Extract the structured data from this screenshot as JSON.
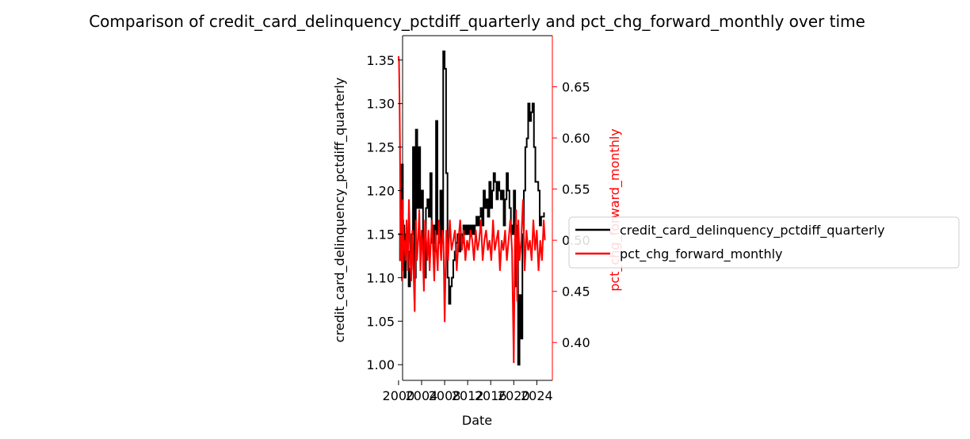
{
  "chart_data": {
    "type": "line",
    "title": "Comparison of credit_card_delinquency_pctdiff_quarterly and pct_chg_forward_monthly over time",
    "xlabel": "Date",
    "ylabel_left": "credit_card_delinquency_pctdiff_quarterly",
    "ylabel_right": "pct_chg_forward_monthly",
    "xlim": [
      2000.7,
      2026.7
    ],
    "ylim_left": [
      0.982,
      1.378
    ],
    "ylim_right": [
      0.363,
      0.7
    ],
    "x_ticks": [
      {
        "value": 2000,
        "label": "2000"
      },
      {
        "value": 2004,
        "label": "2004"
      },
      {
        "value": 2008,
        "label": "2008"
      },
      {
        "value": 2012,
        "label": "2012"
      },
      {
        "value": 2016,
        "label": "2016"
      },
      {
        "value": 2020,
        "label": "2020"
      },
      {
        "value": 2024,
        "label": "2024"
      }
    ],
    "y_ticks_left": [
      {
        "value": 1.0,
        "label": "1.00"
      },
      {
        "value": 1.05,
        "label": "1.05"
      },
      {
        "value": 1.1,
        "label": "1.10"
      },
      {
        "value": 1.15,
        "label": "1.15"
      },
      {
        "value": 1.2,
        "label": "1.20"
      },
      {
        "value": 1.25,
        "label": "1.25"
      },
      {
        "value": 1.3,
        "label": "1.30"
      },
      {
        "value": 1.35,
        "label": "1.35"
      }
    ],
    "y_ticks_right": [
      {
        "value": 0.4,
        "label": "0.40"
      },
      {
        "value": 0.45,
        "label": "0.45"
      },
      {
        "value": 0.5,
        "label": "0.50"
      },
      {
        "value": 0.55,
        "label": "0.55"
      },
      {
        "value": 0.6,
        "label": "0.60"
      },
      {
        "value": 0.65,
        "label": "0.65"
      }
    ],
    "legend_placement": "center-right outside",
    "series": [
      {
        "name": "credit_card_delinquency_pctdiff_quarterly",
        "axis": "left",
        "color": "#000000",
        "step": true,
        "x": [
          2000.0,
          2000.25,
          2000.5,
          2000.75,
          2001.0,
          2001.25,
          2001.5,
          2001.75,
          2002.0,
          2002.25,
          2002.5,
          2002.75,
          2003.0,
          2003.25,
          2003.5,
          2003.75,
          2004.0,
          2004.25,
          2004.5,
          2004.75,
          2005.0,
          2005.25,
          2005.5,
          2005.75,
          2006.0,
          2006.25,
          2006.5,
          2006.75,
          2007.0,
          2007.25,
          2007.5,
          2007.75,
          2008.0,
          2008.25,
          2008.5,
          2008.75,
          2009.0,
          2009.25,
          2009.5,
          2009.75,
          2010.0,
          2010.25,
          2010.5,
          2010.75,
          2011.0,
          2011.25,
          2011.5,
          2011.75,
          2012.0,
          2012.25,
          2012.5,
          2012.75,
          2013.0,
          2013.25,
          2013.5,
          2013.75,
          2014.0,
          2014.25,
          2014.5,
          2014.75,
          2015.0,
          2015.25,
          2015.5,
          2015.75,
          2016.0,
          2016.25,
          2016.5,
          2016.75,
          2017.0,
          2017.25,
          2017.5,
          2017.75,
          2018.0,
          2018.25,
          2018.5,
          2018.75,
          2019.0,
          2019.25,
          2019.5,
          2019.75,
          2020.0,
          2020.25,
          2020.5,
          2020.75,
          2021.0,
          2021.25,
          2021.5,
          2021.75,
          2022.0,
          2022.25,
          2022.5,
          2022.75,
          2023.0,
          2023.25,
          2023.5,
          2023.75,
          2024.0,
          2024.25,
          2024.5,
          2024.75,
          2025.0,
          2025.25
        ],
        "values": [
          1.15,
          1.12,
          1.23,
          1.16,
          1.1,
          1.15,
          1.13,
          1.09,
          1.11,
          1.15,
          1.25,
          1.1,
          1.27,
          1.18,
          1.25,
          1.18,
          1.2,
          1.13,
          1.1,
          1.18,
          1.19,
          1.17,
          1.22,
          1.14,
          1.16,
          1.13,
          1.28,
          1.15,
          1.14,
          1.2,
          1.14,
          1.36,
          1.34,
          1.22,
          1.1,
          1.07,
          1.09,
          1.1,
          1.12,
          1.13,
          1.14,
          1.15,
          1.13,
          1.15,
          1.14,
          1.16,
          1.15,
          1.16,
          1.15,
          1.16,
          1.15,
          1.16,
          1.15,
          1.16,
          1.17,
          1.16,
          1.17,
          1.18,
          1.16,
          1.2,
          1.18,
          1.19,
          1.17,
          1.21,
          1.18,
          1.2,
          1.22,
          1.21,
          1.19,
          1.21,
          1.2,
          1.19,
          1.2,
          1.16,
          1.19,
          1.22,
          1.2,
          1.18,
          1.16,
          1.15,
          1.2,
          1.09,
          1.16,
          1.0,
          1.08,
          1.03,
          1.15,
          1.2,
          1.25,
          1.26,
          1.3,
          1.28,
          1.29,
          1.3,
          1.25,
          1.21,
          1.21,
          1.2,
          1.16,
          1.17,
          1.17,
          1.175
        ]
      },
      {
        "name": "pct_chg_forward_monthly",
        "axis": "right",
        "color": "#ff0000",
        "step": false,
        "x": [
          2000.0,
          2000.08,
          2000.17,
          2000.25,
          2000.33,
          2000.42,
          2000.5,
          2000.58,
          2000.67,
          2000.75,
          2000.83,
          2000.92,
          2001.0,
          2001.2,
          2001.4,
          2001.6,
          2001.8,
          2002.0,
          2002.2,
          2002.4,
          2002.6,
          2002.8,
          2003.0,
          2003.2,
          2003.4,
          2003.6,
          2003.8,
          2004.0,
          2004.2,
          2004.4,
          2004.6,
          2004.8,
          2005.0,
          2005.2,
          2005.4,
          2005.6,
          2005.8,
          2006.0,
          2006.2,
          2006.4,
          2006.6,
          2006.8,
          2007.0,
          2007.2,
          2007.4,
          2007.6,
          2007.8,
          2008.0,
          2008.3,
          2008.6,
          2008.9,
          2009.2,
          2009.5,
          2009.8,
          2010.1,
          2010.4,
          2010.7,
          2011.0,
          2011.3,
          2011.6,
          2011.9,
          2012.2,
          2012.5,
          2012.8,
          2013.1,
          2013.4,
          2013.7,
          2014.0,
          2014.3,
          2014.6,
          2014.9,
          2015.2,
          2015.5,
          2015.8,
          2016.1,
          2016.4,
          2016.7,
          2017.0,
          2017.3,
          2017.6,
          2017.9,
          2018.2,
          2018.5,
          2018.8,
          2019.1,
          2019.4,
          2019.7,
          2020.0,
          2020.2,
          2020.4,
          2020.6,
          2020.8,
          2021.0,
          2021.3,
          2021.6,
          2021.9,
          2022.2,
          2022.5,
          2022.8,
          2023.1,
          2023.4,
          2023.7,
          2024.0,
          2024.3,
          2024.6,
          2024.9,
          2025.2,
          2025.4
        ],
        "values": [
          0.68,
          0.675,
          0.64,
          0.59,
          0.48,
          0.51,
          0.53,
          0.46,
          0.54,
          0.47,
          0.52,
          0.49,
          0.5,
          0.48,
          0.52,
          0.47,
          0.54,
          0.49,
          0.46,
          0.51,
          0.47,
          0.43,
          0.52,
          0.48,
          0.5,
          0.53,
          0.47,
          0.51,
          0.49,
          0.45,
          0.52,
          0.5,
          0.48,
          0.51,
          0.47,
          0.5,
          0.52,
          0.49,
          0.46,
          0.51,
          0.49,
          0.47,
          0.52,
          0.5,
          0.48,
          0.51,
          0.5,
          0.42,
          0.51,
          0.48,
          0.52,
          0.49,
          0.5,
          0.51,
          0.47,
          0.5,
          0.52,
          0.49,
          0.51,
          0.48,
          0.5,
          0.49,
          0.51,
          0.5,
          0.48,
          0.51,
          0.49,
          0.5,
          0.52,
          0.48,
          0.5,
          0.51,
          0.49,
          0.5,
          0.48,
          0.52,
          0.49,
          0.5,
          0.51,
          0.47,
          0.5,
          0.49,
          0.51,
          0.48,
          0.5,
          0.52,
          0.49,
          0.38,
          0.5,
          0.53,
          0.44,
          0.52,
          0.48,
          0.5,
          0.54,
          0.47,
          0.51,
          0.49,
          0.5,
          0.48,
          0.52,
          0.49,
          0.51,
          0.47,
          0.5,
          0.48,
          0.52,
          0.5
        ]
      }
    ]
  }
}
